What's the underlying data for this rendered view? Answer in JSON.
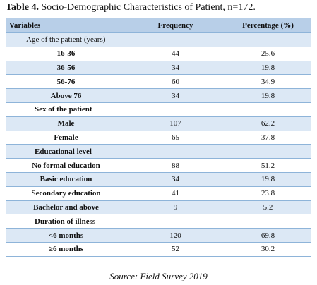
{
  "header": {
    "label": "Table 4.",
    "title": "Socio-Demographic Characteristics of Patient, n=172."
  },
  "table": {
    "columns": [
      "Variables",
      "Frequency",
      "Percentage (%)"
    ],
    "rows": [
      [
        "Age of the patient (years)"
      ],
      [
        "16-36",
        44,
        25.6
      ],
      [
        "36-56",
        34,
        19.8
      ],
      [
        "56-76",
        60,
        34.9
      ],
      [
        "Above 76",
        34,
        19.8
      ],
      [
        "Sex of the patient"
      ],
      [
        "Male",
        107,
        62.2
      ],
      [
        "Female",
        65,
        37.8
      ],
      [
        "Educational level"
      ],
      [
        "No formal education",
        88,
        51.2
      ],
      [
        "Basic education",
        34,
        19.8
      ],
      [
        "Secondary education",
        41,
        23.8
      ],
      [
        "Bachelor and above",
        9,
        5.2
      ],
      [
        "Duration of illness"
      ],
      [
        "<6 months",
        120,
        69.8
      ],
      [
        "≥6 months",
        52,
        30.2
      ]
    ]
  },
  "footer": {
    "source": "Source: Field Survey 2019"
  }
}
